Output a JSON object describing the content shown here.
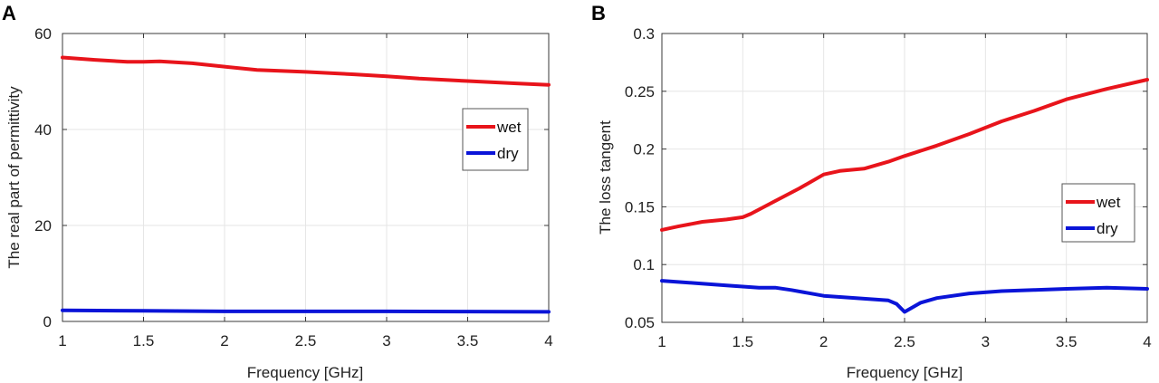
{
  "chart_data": [
    {
      "panel": "A",
      "type": "line",
      "title": "",
      "xlabel": "Frequency [GHz]",
      "ylabel": "The real part of permittivity",
      "xlim": [
        1,
        4
      ],
      "ylim": [
        0,
        60
      ],
      "xticks": [
        1,
        1.5,
        2,
        2.5,
        3,
        3.5,
        4
      ],
      "xtick_labels": [
        "1",
        "1.5",
        "2",
        "2.5",
        "3",
        "3.5",
        "4"
      ],
      "yticks": [
        0,
        20,
        40,
        60
      ],
      "ytick_labels": [
        "0",
        "20",
        "40",
        "60"
      ],
      "grid": true,
      "legend": {
        "placement": "right-middle",
        "entries": [
          "wet",
          "dry"
        ]
      },
      "series": [
        {
          "name": "wet",
          "color": "#e8141b",
          "x": [
            1,
            1.2,
            1.4,
            1.5,
            1.6,
            1.8,
            2,
            2.2,
            2.5,
            2.8,
            3,
            3.2,
            3.5,
            3.8,
            4
          ],
          "y": [
            55,
            54.5,
            54.1,
            54.1,
            54.2,
            53.8,
            53.1,
            52.4,
            52,
            51.5,
            51.1,
            50.6,
            50.1,
            49.6,
            49.3
          ]
        },
        {
          "name": "dry",
          "color": "#0a14d8",
          "x": [
            1,
            1.5,
            2,
            2.5,
            3,
            3.5,
            4
          ],
          "y": [
            2.3,
            2.2,
            2.1,
            2.1,
            2.1,
            2.05,
            2.0
          ]
        }
      ]
    },
    {
      "panel": "B",
      "type": "line",
      "title": "",
      "xlabel": "Frequency [GHz]",
      "ylabel": "The loss tangent",
      "xlim": [
        1,
        4
      ],
      "ylim": [
        0.05,
        0.3
      ],
      "xticks": [
        1,
        1.5,
        2,
        2.5,
        3,
        3.5,
        4
      ],
      "xtick_labels": [
        "1",
        "1.5",
        "2",
        "2.5",
        "3",
        "3.5",
        "4"
      ],
      "yticks": [
        0.05,
        0.1,
        0.15,
        0.2,
        0.25,
        0.3
      ],
      "ytick_labels": [
        "0.05",
        "0.1",
        "0.15",
        "0.2",
        "0.25",
        "0.3"
      ],
      "grid": true,
      "legend": {
        "placement": "right-middle",
        "entries": [
          "wet",
          "dry"
        ]
      },
      "series": [
        {
          "name": "wet",
          "color": "#e8141b",
          "x": [
            1,
            1.1,
            1.25,
            1.4,
            1.5,
            1.55,
            1.7,
            1.85,
            2,
            2.1,
            2.25,
            2.4,
            2.5,
            2.7,
            2.9,
            3.1,
            3.3,
            3.5,
            3.75,
            4
          ],
          "y": [
            0.13,
            0.133,
            0.137,
            0.139,
            0.141,
            0.144,
            0.155,
            0.166,
            0.178,
            0.181,
            0.183,
            0.189,
            0.194,
            0.203,
            0.213,
            0.224,
            0.233,
            0.243,
            0.252,
            0.26
          ]
        },
        {
          "name": "dry",
          "color": "#0a14d8",
          "x": [
            1,
            1.2,
            1.4,
            1.6,
            1.7,
            1.8,
            2,
            2.2,
            2.4,
            2.45,
            2.5,
            2.6,
            2.7,
            2.9,
            3.1,
            3.3,
            3.5,
            3.75,
            4
          ],
          "y": [
            0.086,
            0.084,
            0.082,
            0.08,
            0.08,
            0.078,
            0.073,
            0.071,
            0.069,
            0.066,
            0.059,
            0.067,
            0.071,
            0.075,
            0.077,
            0.078,
            0.079,
            0.08,
            0.079
          ]
        }
      ]
    }
  ]
}
